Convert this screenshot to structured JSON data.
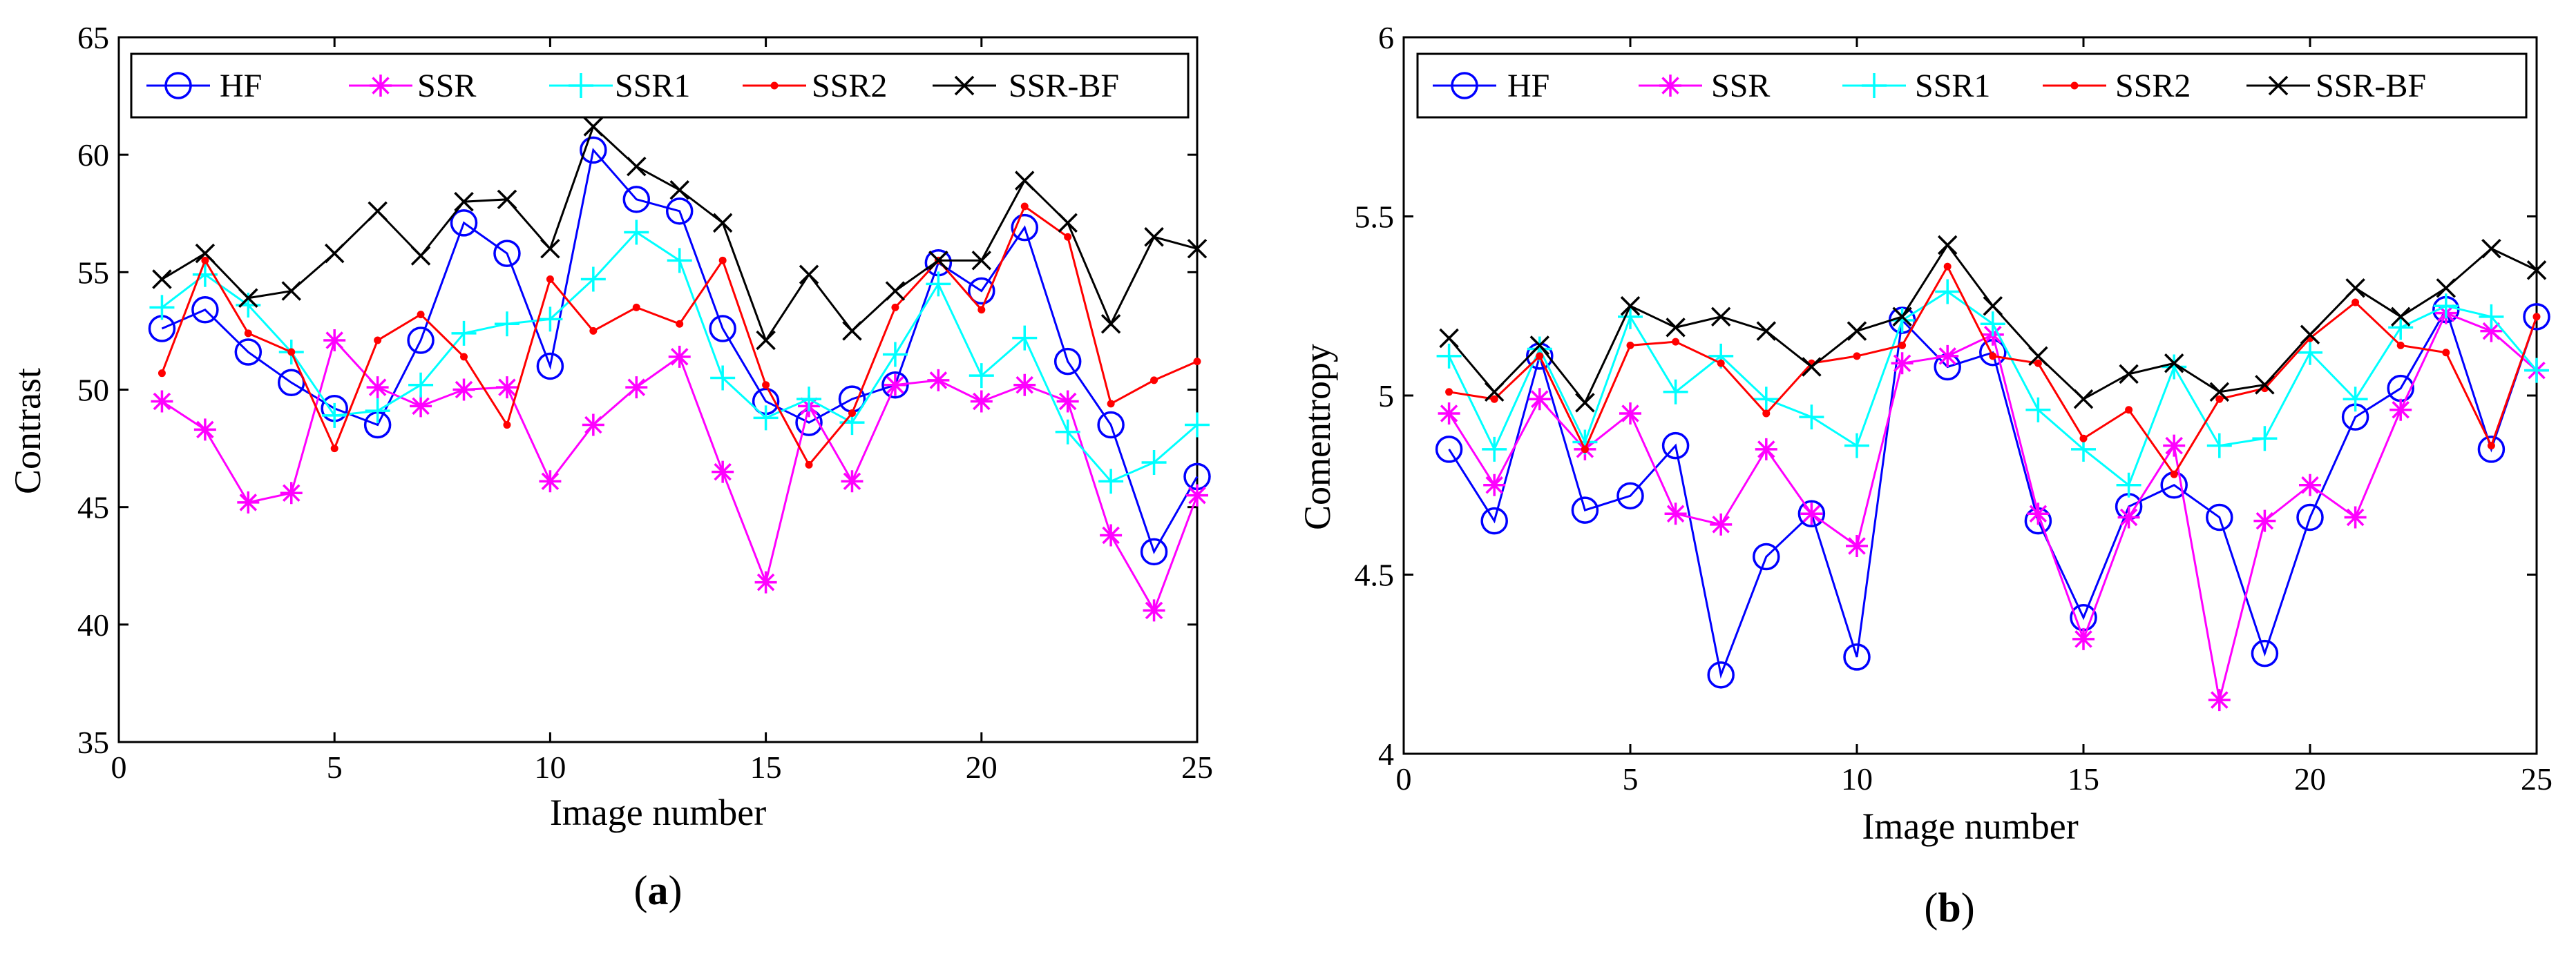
{
  "chart_data": [
    {
      "type": "line",
      "panel_label": "(a)",
      "panel_letter": "a",
      "xlabel": "Image number",
      "ylabel": "Contrast",
      "xlim": [
        0,
        25
      ],
      "ylim": [
        35,
        65
      ],
      "xticks": [
        0,
        5,
        10,
        15,
        20,
        25
      ],
      "yticks": [
        35,
        40,
        45,
        50,
        55,
        60,
        65
      ],
      "grid": false,
      "legend_position": "top",
      "x": [
        1,
        2,
        3,
        4,
        5,
        6,
        7,
        8,
        9,
        10,
        11,
        12,
        13,
        14,
        15,
        16,
        17,
        18,
        19,
        20,
        21,
        22,
        23,
        24,
        25
      ],
      "series": [
        {
          "name": "HF",
          "color": "#0000ff",
          "marker": "circle",
          "values": [
            52.6,
            53.4,
            51.6,
            50.3,
            49.2,
            48.5,
            52.1,
            57.1,
            55.8,
            51.0,
            60.2,
            58.1,
            57.6,
            52.6,
            49.5,
            48.6,
            49.6,
            50.2,
            55.4,
            54.2,
            56.9,
            51.2,
            48.5,
            43.1,
            46.3
          ]
        },
        {
          "name": "SSR",
          "color": "#ff00ff",
          "marker": "asterisk",
          "values": [
            49.5,
            48.3,
            45.2,
            45.6,
            52.1,
            50.1,
            49.3,
            50.0,
            50.1,
            46.1,
            48.5,
            50.1,
            51.4,
            46.5,
            41.8,
            49.3,
            46.1,
            50.2,
            50.4,
            49.5,
            50.2,
            49.5,
            43.8,
            40.6,
            45.5
          ]
        },
        {
          "name": "SSR1",
          "color": "#00ffff",
          "marker": "plus",
          "values": [
            53.5,
            54.9,
            53.6,
            51.6,
            48.9,
            49.1,
            50.2,
            52.4,
            52.8,
            53.0,
            54.7,
            56.7,
            55.5,
            50.5,
            48.8,
            49.6,
            48.6,
            51.5,
            54.5,
            50.6,
            52.2,
            48.2,
            46.1,
            46.9,
            48.5
          ]
        },
        {
          "name": "SSR2",
          "color": "#ff0000",
          "marker": "dot",
          "values": [
            50.7,
            55.5,
            52.4,
            51.6,
            47.5,
            52.1,
            53.2,
            51.4,
            48.5,
            54.7,
            52.5,
            53.5,
            52.8,
            55.5,
            50.2,
            46.8,
            49.0,
            53.5,
            55.5,
            53.4,
            57.8,
            56.5,
            49.4,
            50.4,
            51.2
          ]
        },
        {
          "name": "SSR-BF",
          "color": "#000000",
          "marker": "x",
          "values": [
            54.7,
            55.8,
            53.9,
            54.2,
            55.8,
            57.6,
            55.7,
            58.0,
            58.1,
            56.0,
            61.2,
            59.5,
            58.5,
            57.1,
            52.1,
            54.9,
            52.5,
            54.2,
            55.5,
            55.5,
            58.9,
            57.1,
            52.8,
            56.5,
            56.0
          ]
        }
      ]
    },
    {
      "type": "line",
      "panel_label": "(b)",
      "panel_letter": "b",
      "xlabel": "Image number",
      "ylabel": "Comentropy",
      "xlim": [
        0,
        25
      ],
      "ylim": [
        4,
        6
      ],
      "xticks": [
        0,
        5,
        10,
        15,
        20,
        25
      ],
      "yticks": [
        4,
        4.5,
        5,
        5.5,
        6
      ],
      "grid": false,
      "legend_position": "top",
      "x": [
        1,
        2,
        3,
        4,
        5,
        6,
        7,
        8,
        9,
        10,
        11,
        12,
        13,
        14,
        15,
        16,
        17,
        18,
        19,
        20,
        21,
        22,
        23,
        24,
        25
      ],
      "series": [
        {
          "name": "HF",
          "color": "#0000ff",
          "marker": "circle",
          "values": [
            4.85,
            4.65,
            5.11,
            4.68,
            4.72,
            4.86,
            4.22,
            4.55,
            4.67,
            4.27,
            5.21,
            5.08,
            5.12,
            4.65,
            4.38,
            4.69,
            4.75,
            4.66,
            4.28,
            4.66,
            4.94,
            5.02,
            5.24,
            4.85,
            5.22
          ]
        },
        {
          "name": "SSR",
          "color": "#ff00ff",
          "marker": "asterisk",
          "values": [
            4.95,
            4.75,
            4.99,
            4.85,
            4.95,
            4.67,
            4.64,
            4.85,
            4.67,
            4.58,
            5.09,
            5.11,
            5.17,
            4.67,
            4.32,
            4.66,
            4.86,
            4.15,
            4.65,
            4.75,
            4.66,
            4.96,
            5.23,
            5.18,
            5.07
          ]
        },
        {
          "name": "SSR1",
          "color": "#00ffff",
          "marker": "plus",
          "values": [
            5.11,
            4.85,
            5.13,
            4.87,
            5.22,
            5.01,
            5.11,
            4.99,
            4.94,
            4.86,
            5.21,
            5.29,
            5.2,
            4.96,
            4.85,
            4.75,
            5.08,
            4.86,
            4.88,
            5.12,
            4.99,
            5.19,
            5.25,
            5.22,
            5.07
          ]
        },
        {
          "name": "SSR2",
          "color": "#ff0000",
          "marker": "dot",
          "values": [
            5.01,
            4.99,
            5.11,
            4.85,
            5.14,
            5.15,
            5.09,
            4.95,
            5.09,
            5.11,
            5.14,
            5.36,
            5.11,
            5.09,
            4.88,
            4.96,
            4.78,
            4.99,
            5.02,
            5.16,
            5.26,
            5.14,
            5.12,
            4.86,
            5.22
          ]
        },
        {
          "name": "SSR-BF",
          "color": "#000000",
          "marker": "x",
          "values": [
            5.16,
            5.01,
            5.14,
            4.98,
            5.25,
            5.19,
            5.22,
            5.18,
            5.08,
            5.18,
            5.22,
            5.42,
            5.25,
            5.11,
            4.99,
            5.06,
            5.09,
            5.01,
            5.03,
            5.17,
            5.3,
            5.22,
            5.3,
            5.41,
            5.35
          ]
        }
      ]
    }
  ]
}
